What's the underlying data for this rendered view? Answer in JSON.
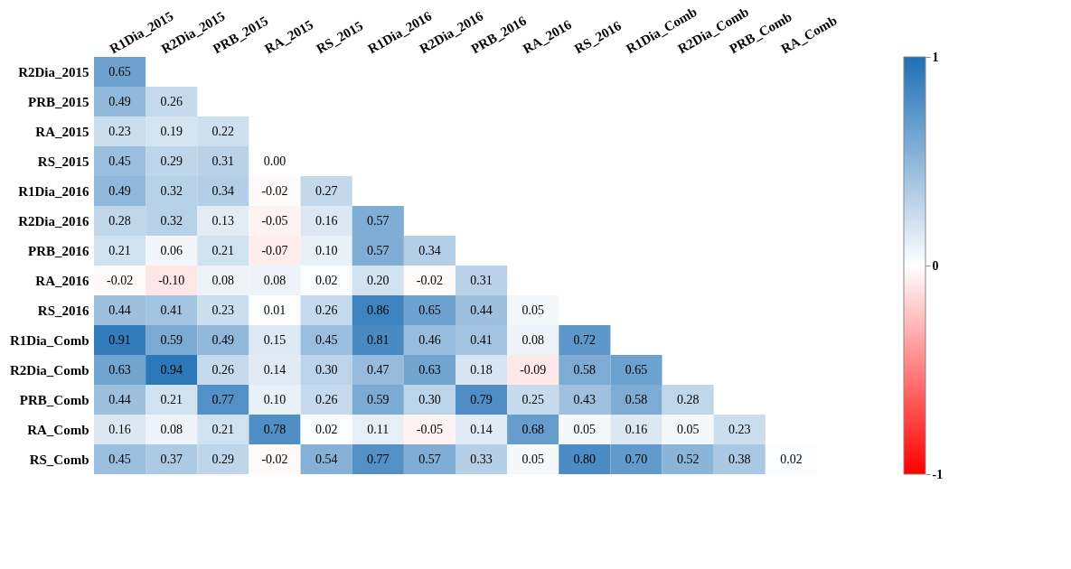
{
  "chart_data": {
    "type": "heatmap",
    "categories": [
      "R1Dia_2015",
      "R2Dia_2015",
      "PRB_2015",
      "RA_2015",
      "RS_2015",
      "R1Dia_2016",
      "R2Dia_2016",
      "PRB_2016",
      "RA_2016",
      "RS_2016",
      "R1Dia_Comb",
      "R2Dia_Comb",
      "PRB_Comb",
      "RA_Comb"
    ],
    "y_categories": [
      "R2Dia_2015",
      "PRB_2015",
      "RA_2015",
      "RS_2015",
      "R1Dia_2016",
      "R2Dia_2016",
      "PRB_2016",
      "RA_2016",
      "RS_2016",
      "R1Dia_Comb",
      "R2Dia_Comb",
      "PRB_Comb",
      "RA_Comb",
      "RS_Comb"
    ],
    "cells": [
      [
        0.65,
        null,
        null,
        null,
        null,
        null,
        null,
        null,
        null,
        null,
        null,
        null,
        null,
        null
      ],
      [
        0.49,
        0.26,
        null,
        null,
        null,
        null,
        null,
        null,
        null,
        null,
        null,
        null,
        null,
        null
      ],
      [
        0.23,
        0.19,
        0.22,
        null,
        null,
        null,
        null,
        null,
        null,
        null,
        null,
        null,
        null,
        null
      ],
      [
        0.45,
        0.29,
        0.31,
        0.0,
        null,
        null,
        null,
        null,
        null,
        null,
        null,
        null,
        null,
        null
      ],
      [
        0.49,
        0.32,
        0.34,
        -0.02,
        0.27,
        null,
        null,
        null,
        null,
        null,
        null,
        null,
        null,
        null
      ],
      [
        0.28,
        0.32,
        0.13,
        -0.05,
        0.16,
        0.57,
        null,
        null,
        null,
        null,
        null,
        null,
        null,
        null
      ],
      [
        0.21,
        0.06,
        0.21,
        -0.07,
        0.1,
        0.57,
        0.34,
        null,
        null,
        null,
        null,
        null,
        null,
        null
      ],
      [
        -0.02,
        -0.1,
        0.08,
        0.08,
        0.02,
        0.2,
        -0.02,
        0.31,
        null,
        null,
        null,
        null,
        null,
        null
      ],
      [
        0.44,
        0.41,
        0.23,
        0.01,
        0.26,
        0.86,
        0.65,
        0.44,
        0.05,
        null,
        null,
        null,
        null,
        null
      ],
      [
        0.91,
        0.59,
        0.49,
        0.15,
        0.45,
        0.81,
        0.46,
        0.41,
        0.08,
        0.72,
        null,
        null,
        null,
        null
      ],
      [
        0.63,
        0.94,
        0.26,
        0.14,
        0.3,
        0.47,
        0.63,
        0.18,
        -0.09,
        0.58,
        0.65,
        null,
        null,
        null
      ],
      [
        0.44,
        0.21,
        0.77,
        0.1,
        0.26,
        0.59,
        0.3,
        0.79,
        0.25,
        0.43,
        0.58,
        0.28,
        null,
        null
      ],
      [
        0.16,
        0.08,
        0.21,
        0.78,
        0.02,
        0.11,
        -0.05,
        0.14,
        0.68,
        0.05,
        0.16,
        0.05,
        0.23,
        null
      ],
      [
        0.45,
        0.37,
        0.29,
        -0.02,
        0.54,
        0.77,
        0.57,
        0.33,
        0.05,
        0.8,
        0.7,
        0.52,
        0.38,
        0.02
      ]
    ],
    "cell_labels": [
      [
        "0.65",
        null,
        null,
        null,
        null,
        null,
        null,
        null,
        null,
        null,
        null,
        null,
        null,
        null
      ],
      [
        "0.49",
        "0.26",
        null,
        null,
        null,
        null,
        null,
        null,
        null,
        null,
        null,
        null,
        null,
        null
      ],
      [
        "0.23",
        "0.19",
        "0.22",
        null,
        null,
        null,
        null,
        null,
        null,
        null,
        null,
        null,
        null,
        null
      ],
      [
        "0.45",
        "0.29",
        "0.31",
        "0.00",
        null,
        null,
        null,
        null,
        null,
        null,
        null,
        null,
        null,
        null
      ],
      [
        "0.49",
        "0.32",
        "0.34",
        "-0.02",
        "0.27",
        null,
        null,
        null,
        null,
        null,
        null,
        null,
        null,
        null
      ],
      [
        "0.28",
        "0.32",
        "0.13",
        "-0.05",
        "0.16",
        "0.57",
        null,
        null,
        null,
        null,
        null,
        null,
        null,
        null
      ],
      [
        "0.21",
        "0.06",
        "0.21",
        "-0.07",
        "0.10",
        "0.57",
        "0.34",
        null,
        null,
        null,
        null,
        null,
        null,
        null
      ],
      [
        "-0.02",
        "-0.10",
        "0.08",
        "0.08",
        "0.02",
        "0.20",
        "-0.02",
        "0.31",
        null,
        null,
        null,
        null,
        null,
        null
      ],
      [
        "0.44",
        "0.41",
        "0.23",
        "0.01",
        "0.26",
        "0.86",
        "0.65",
        "0.44",
        "0.05",
        null,
        null,
        null,
        null,
        null
      ],
      [
        "0.91",
        "0.59",
        "0.49",
        "0.15",
        "0.45",
        "0.81",
        "0.46",
        "0.41",
        "0.08",
        "0.72",
        null,
        null,
        null,
        null
      ],
      [
        "0.63",
        "0.94",
        "0.26",
        "0.14",
        "0.30",
        "0.47",
        "0.63",
        "0.18",
        "-0.09",
        "0.58",
        "0.65",
        null,
        null,
        null
      ],
      [
        "0.44",
        "0.21",
        "0.77",
        "0.10",
        "0.26",
        "0.59",
        "0.30",
        "0.79",
        "0.25",
        "0.43",
        "0.58",
        "0.28",
        null,
        null
      ],
      [
        "0.16",
        "0.08",
        "0.21",
        "0.78",
        "0.02",
        "0.11",
        "-0.05",
        "0.14",
        "0.68",
        "0.05",
        "0.16",
        "0.05",
        "0.23",
        null
      ],
      [
        "0.45",
        "0.37",
        "0.29",
        "-0.02",
        "0.54",
        "0.77",
        "0.57",
        "0.33",
        "0.05",
        "0.80",
        "0.70",
        "0.52",
        "0.38",
        "0.02"
      ]
    ],
    "data_labels": true,
    "clim": [
      -1,
      1
    ],
    "cticks": [
      -1,
      0,
      1
    ]
  }
}
